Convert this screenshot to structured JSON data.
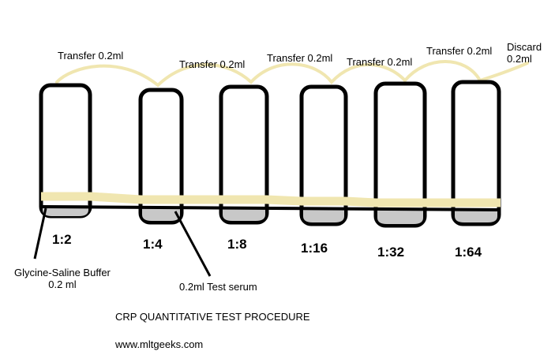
{
  "transfers": [
    {
      "text": "Transfer 0.2ml"
    },
    {
      "text": "Transfer 0.2ml"
    },
    {
      "text": "Transfer 0.2ml"
    },
    {
      "text": "Transfer 0.2ml"
    },
    {
      "text": "Transfer 0.2ml"
    }
  ],
  "discard": {
    "line1": "Discard",
    "line2": "0.2ml"
  },
  "tubes": [
    {
      "ratio": "1:2"
    },
    {
      "ratio": "1:4"
    },
    {
      "ratio": "1:8"
    },
    {
      "ratio": "1:16"
    },
    {
      "ratio": "1:32"
    },
    {
      "ratio": "1:64"
    }
  ],
  "buffer_label": {
    "line1": "Glycine-Saline Buffer",
    "line2": "0.2 ml"
  },
  "serum_label": "0.2ml Test serum",
  "title": "CRP QUANTITATIVE TEST PROCEDURE",
  "website": "www.mltgeeks.com",
  "colors": {
    "liquid": "#f0e6b0",
    "sediment": "#c8c8c8",
    "outline": "#000000",
    "background": "#ffffff"
  }
}
